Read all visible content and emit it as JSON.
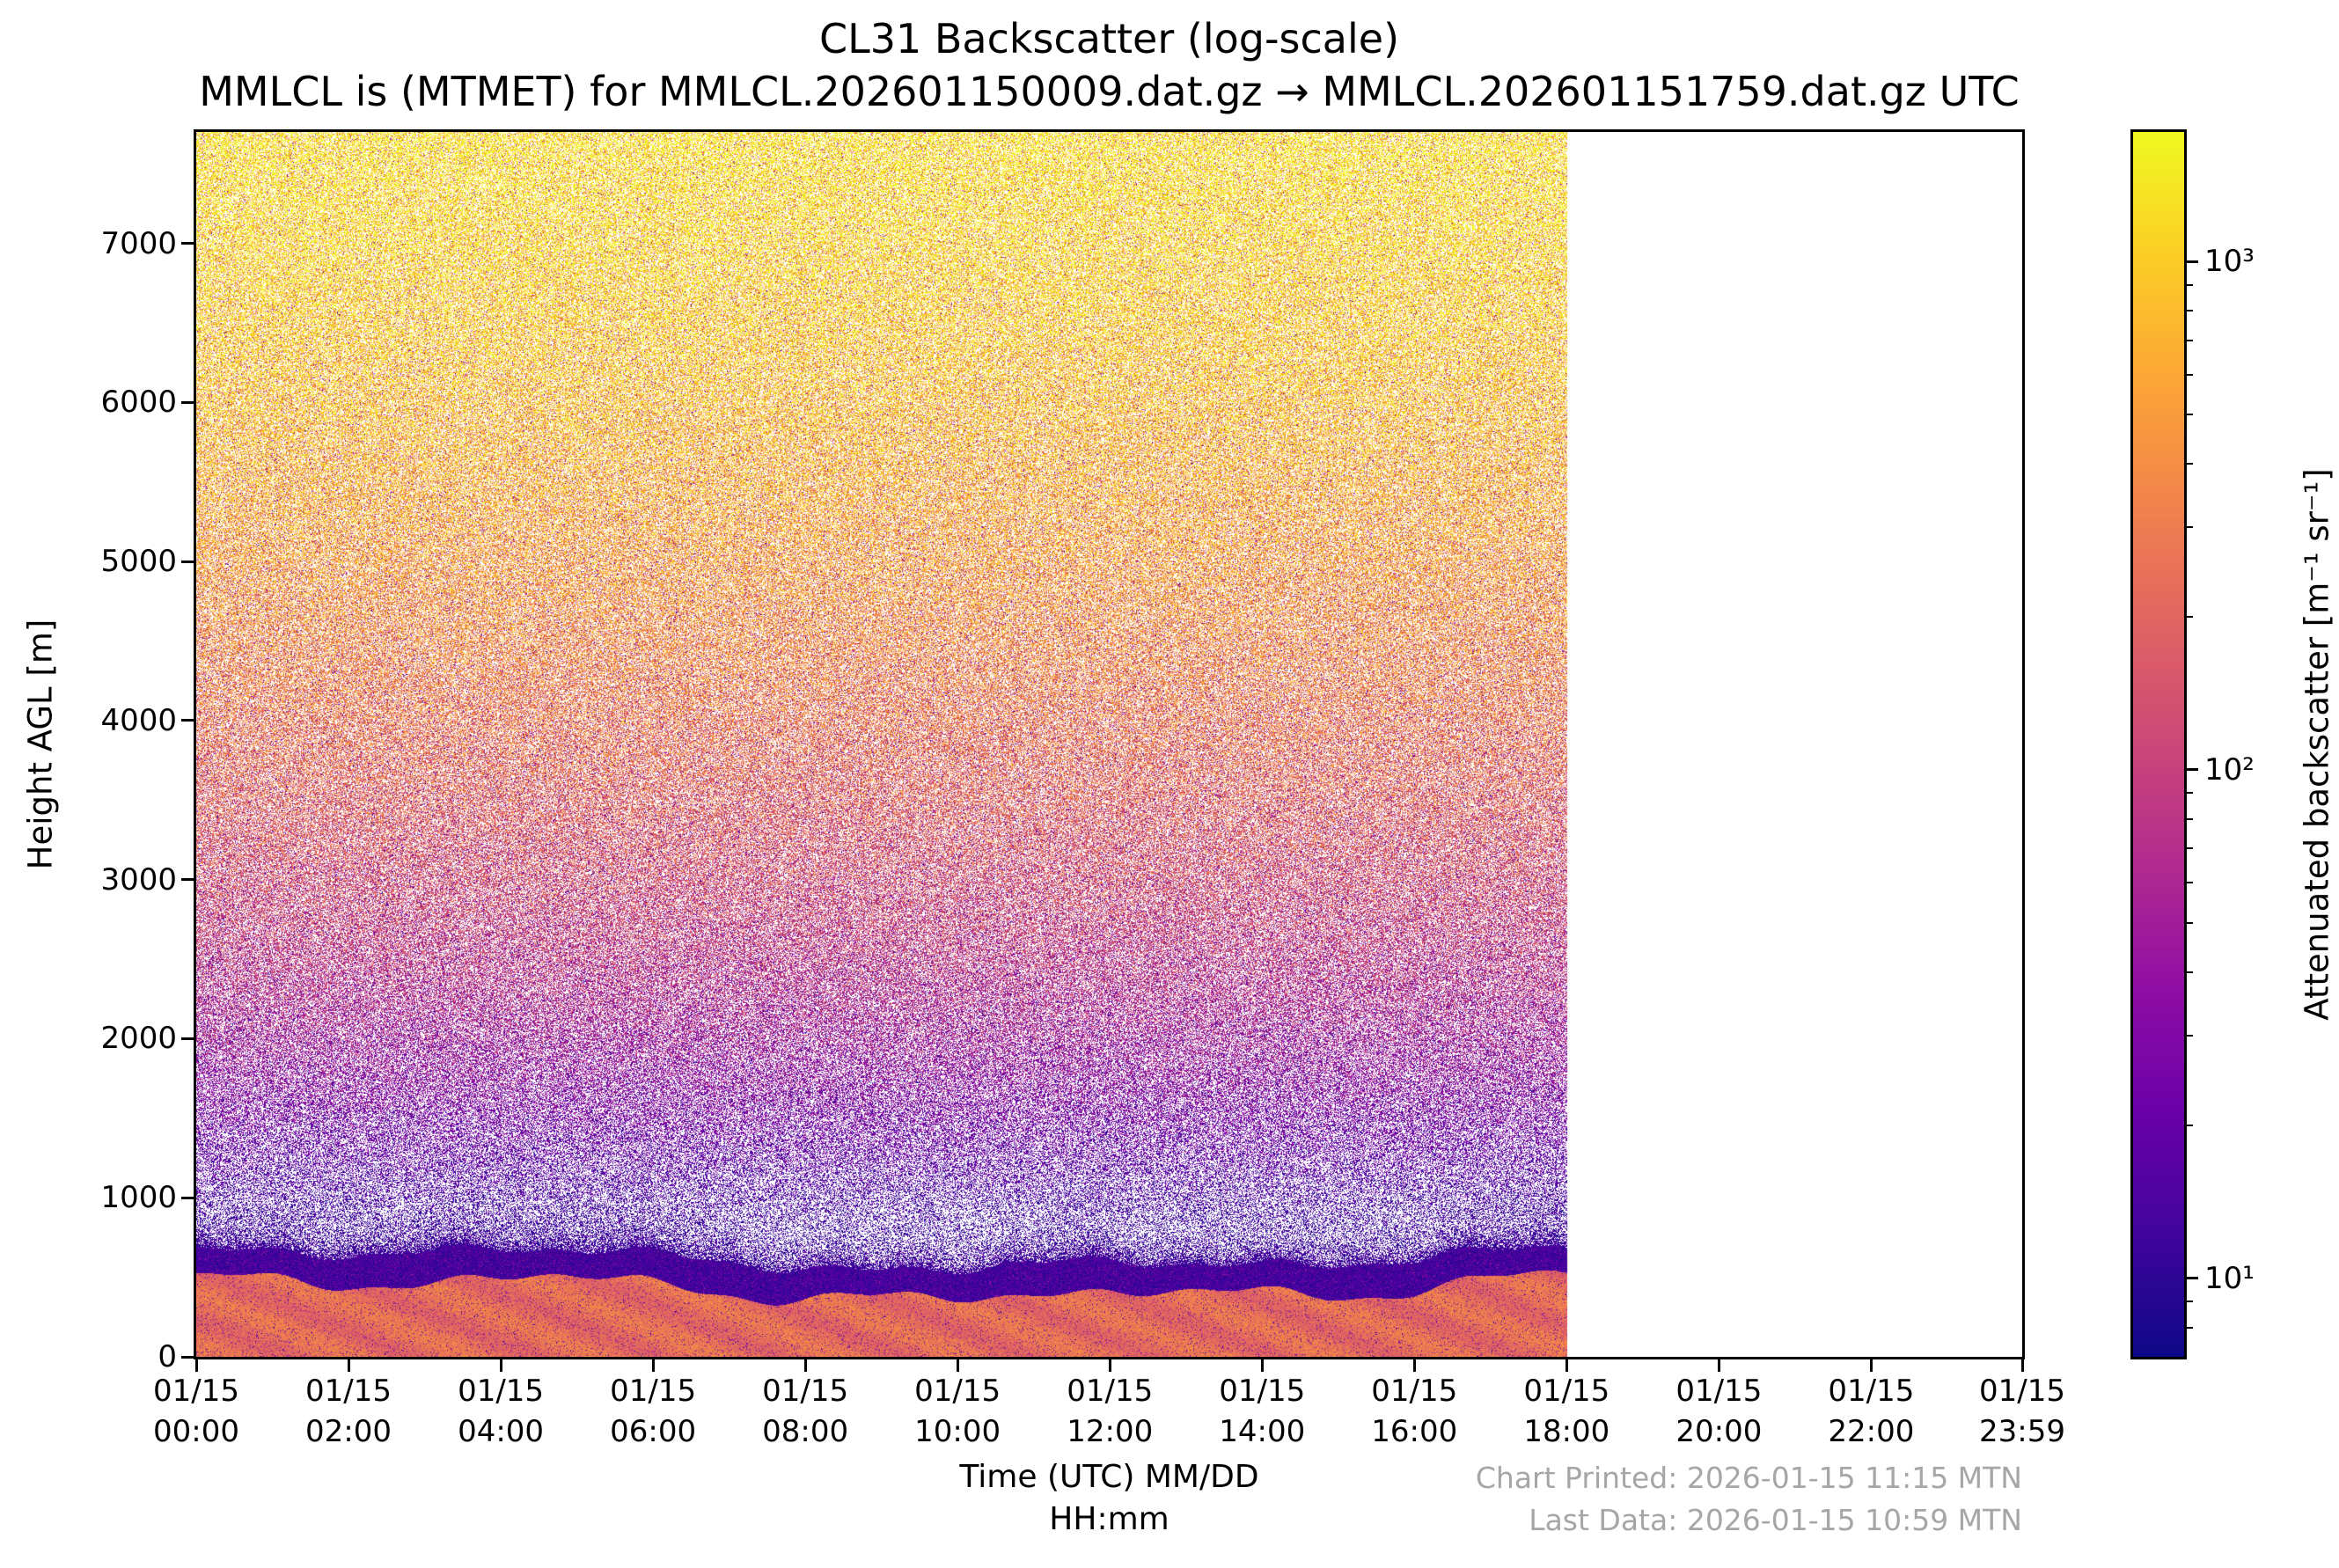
{
  "header": {
    "title": "CL31 Backscatter (log-scale)",
    "subtitle": "MMLCL is (MTMET) for MMLCL.202601150009.dat.gz → MMLCL.202601151759.dat.gz UTC"
  },
  "footer": {
    "chart_printed": "Chart Printed: 2026-01-15 11:15 MTN",
    "last_data": "Last Data: 2026-01-15 10:59 MTN"
  },
  "chart_data": {
    "type": "heatmap",
    "title": "CL31 Backscatter (log-scale)",
    "subtitle": "MMLCL is (MTMET) for MMLCL.202601150009.dat.gz → MMLCL.202601151759.dat.gz UTC",
    "xlabel_line1": "Time (UTC) MM/DD",
    "xlabel_line2": "HH:mm",
    "ylabel": "Height AGL [m]",
    "x_axis": {
      "range_hours": [
        0,
        23.9833
      ],
      "ticks": [
        {
          "hour": 0,
          "label_date": "01/15",
          "label_time": "00:00"
        },
        {
          "hour": 2,
          "label_date": "01/15",
          "label_time": "02:00"
        },
        {
          "hour": 4,
          "label_date": "01/15",
          "label_time": "04:00"
        },
        {
          "hour": 6,
          "label_date": "01/15",
          "label_time": "06:00"
        },
        {
          "hour": 8,
          "label_date": "01/15",
          "label_time": "08:00"
        },
        {
          "hour": 10,
          "label_date": "01/15",
          "label_time": "10:00"
        },
        {
          "hour": 12,
          "label_date": "01/15",
          "label_time": "12:00"
        },
        {
          "hour": 14,
          "label_date": "01/15",
          "label_time": "14:00"
        },
        {
          "hour": 16,
          "label_date": "01/15",
          "label_time": "16:00"
        },
        {
          "hour": 18,
          "label_date": "01/15",
          "label_time": "18:00"
        },
        {
          "hour": 20,
          "label_date": "01/15",
          "label_time": "20:00"
        },
        {
          "hour": 22,
          "label_date": "01/15",
          "label_time": "22:00"
        },
        {
          "hour": 23.9833,
          "label_date": "01/15",
          "label_time": "23:59"
        }
      ]
    },
    "y_axis": {
      "range_m": [
        0,
        7700
      ],
      "ticks": [
        0,
        1000,
        2000,
        3000,
        4000,
        5000,
        6000,
        7000
      ]
    },
    "data_coverage": {
      "start_hour": 0,
      "end_hour": 18.0,
      "note": "Backscatter data plotted from 01/15 00:00 to 01/15 18:00 UTC; region right of 18:00 is blank (no data yet)"
    },
    "colorbar": {
      "label": "Attenuated backscatter [m⁻¹ sr⁻¹]",
      "scale": "log",
      "min": 7,
      "max": 1800,
      "ticks": [
        {
          "value": 10,
          "label": "10¹"
        },
        {
          "value": 100,
          "label": "10²"
        },
        {
          "value": 1000,
          "label": "10³"
        }
      ],
      "colormap": "plasma",
      "colormap_stops": [
        {
          "t": 0.0,
          "c": "#0d0887"
        },
        {
          "t": 0.1,
          "c": "#41049d"
        },
        {
          "t": 0.2,
          "c": "#6a00a8"
        },
        {
          "t": 0.3,
          "c": "#8f0da4"
        },
        {
          "t": 0.4,
          "c": "#b12a90"
        },
        {
          "t": 0.5,
          "c": "#cc4778"
        },
        {
          "t": 0.6,
          "c": "#e16462"
        },
        {
          "t": 0.7,
          "c": "#f2844b"
        },
        {
          "t": 0.8,
          "c": "#fca636"
        },
        {
          "t": 0.9,
          "c": "#fcce25"
        },
        {
          "t": 1.0,
          "c": "#f0f921"
        }
      ]
    },
    "features": {
      "surface_aerosol_layer_top_m": 435,
      "boundary_layer_cap_top_m": 620,
      "description": "Strong orange/salmon surface aerosol layer from 0 to ~450 m AGL capped by a dark indigo/purple band near ~450-700 m; above that, range-dependent noise speckle over white background grading from dark blue/purple at low altitude through magenta/pink mid-levels to orange/yellow saturation near 7000+ m."
    }
  }
}
